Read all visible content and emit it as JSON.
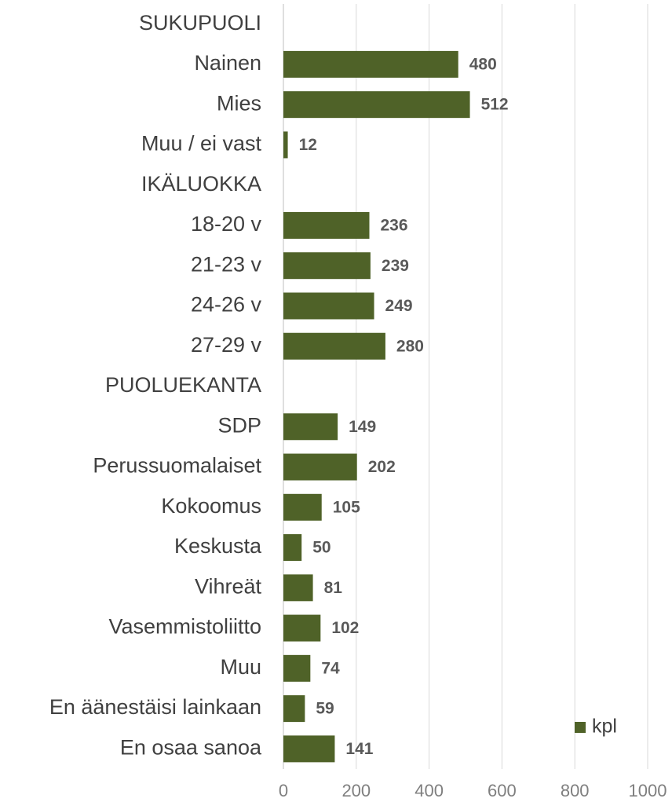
{
  "chart_data": {
    "type": "bar",
    "orientation": "horizontal",
    "categories": [
      "SUKUPUOLI",
      "Nainen",
      "Mies",
      "Muu / ei vast",
      "IKÄLUOKKA",
      "18-20 v",
      "21-23 v",
      "24-26 v",
      "27-29 v",
      "PUOLUEKANTA",
      "SDP",
      "Perussuomalaiset",
      "Kokoomus",
      "Keskusta",
      "Vihreät",
      "Vasemmistoliitto",
      "Muu",
      "En äänestäisi lainkaan",
      "En osaa sanoa"
    ],
    "series": [
      {
        "name": "kpl",
        "color": "#4f6228",
        "values": [
          null,
          480,
          512,
          12,
          null,
          236,
          239,
          249,
          280,
          null,
          149,
          202,
          105,
          50,
          81,
          102,
          74,
          59,
          141
        ]
      }
    ],
    "xlim": [
      0,
      1000
    ],
    "xticks": [
      0,
      200,
      400,
      600,
      800,
      1000
    ],
    "grid": true,
    "legend": "lower right"
  }
}
